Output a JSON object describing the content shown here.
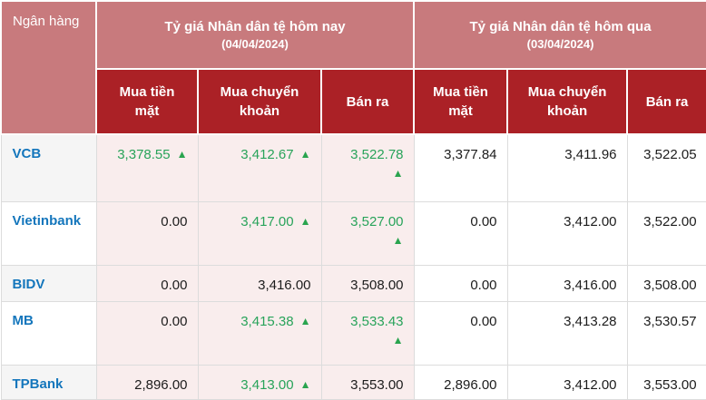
{
  "table": {
    "title_column": "Ngân hàng",
    "groups": {
      "today": {
        "title": "Tỷ giá Nhân dân tệ hôm nay",
        "date": "(04/04/2024)"
      },
      "yesterday": {
        "title": "Tỷ giá Nhân dân tệ hôm qua",
        "date": "(03/04/2024)"
      }
    },
    "sub_headers": {
      "cash": "Mua tiền mặt",
      "transfer": "Mua chuyển khoản",
      "sell": "Bán ra"
    },
    "rows": [
      {
        "bank": "VCB",
        "cells": [
          {
            "value": "3,378.55",
            "trend": "up",
            "arrow_wrap": false
          },
          {
            "value": "3,412.67",
            "trend": "up",
            "arrow_wrap": false
          },
          {
            "value": "3,522.78",
            "trend": "up",
            "arrow_wrap": true
          },
          {
            "value": "3,377.84",
            "trend": null
          },
          {
            "value": "3,411.96",
            "trend": null
          },
          {
            "value": "3,522.05",
            "trend": null
          }
        ]
      },
      {
        "bank": "Vietinbank",
        "cells": [
          {
            "value": "0.00",
            "trend": null
          },
          {
            "value": "3,417.00",
            "trend": "up",
            "arrow_wrap": false
          },
          {
            "value": "3,527.00",
            "trend": "up",
            "arrow_wrap": true
          },
          {
            "value": "0.00",
            "trend": null
          },
          {
            "value": "3,412.00",
            "trend": null
          },
          {
            "value": "3,522.00",
            "trend": null
          }
        ]
      },
      {
        "bank": "BIDV",
        "cells": [
          {
            "value": "0.00",
            "trend": null
          },
          {
            "value": "3,416.00",
            "trend": null
          },
          {
            "value": "3,508.00",
            "trend": null
          },
          {
            "value": "0.00",
            "trend": null
          },
          {
            "value": "3,416.00",
            "trend": null
          },
          {
            "value": "3,508.00",
            "trend": null
          }
        ]
      },
      {
        "bank": "MB",
        "cells": [
          {
            "value": "0.00",
            "trend": null
          },
          {
            "value": "3,415.38",
            "trend": "up",
            "arrow_wrap": false
          },
          {
            "value": "3,533.43",
            "trend": "up",
            "arrow_wrap": true
          },
          {
            "value": "0.00",
            "trend": null
          },
          {
            "value": "3,413.28",
            "trend": null
          },
          {
            "value": "3,530.57",
            "trend": null
          }
        ]
      },
      {
        "bank": "TPBank",
        "cells": [
          {
            "value": "2,896.00",
            "trend": null
          },
          {
            "value": "3,413.00",
            "trend": "up",
            "arrow_wrap": false
          },
          {
            "value": "3,553.00",
            "trend": null
          },
          {
            "value": "2,896.00",
            "trend": null
          },
          {
            "value": "3,412.00",
            "trend": null
          },
          {
            "value": "3,553.00",
            "trend": null
          }
        ]
      }
    ]
  },
  "icons": {
    "up_arrow": "▲"
  },
  "colors": {
    "header_light_red": "#c87a7d",
    "header_dark_red": "#ab2126",
    "today_cell_pink": "#f9eded",
    "bank_row_stripe": "#f5f5f5",
    "bank_link_blue": "#1476bc",
    "trend_up_green": "#28a35a",
    "grid_border": "#dcdcdc"
  }
}
